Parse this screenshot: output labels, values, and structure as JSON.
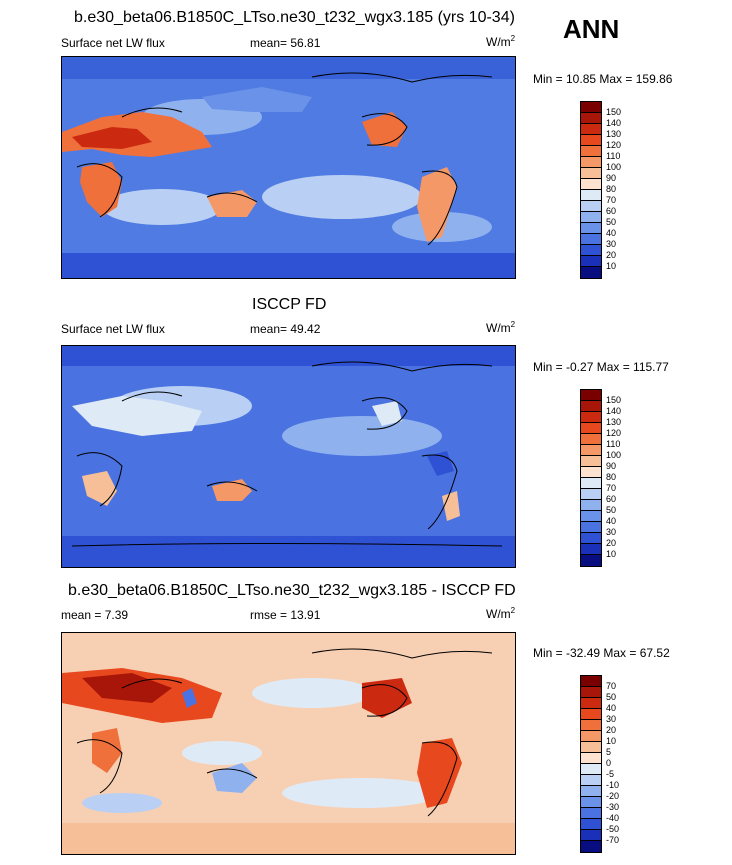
{
  "header": {
    "ann": "ANN"
  },
  "panels": [
    {
      "title": "b.e30_beta06.B1850C_LTso.ne30_t232_wgx3.185 (yrs 10-34)",
      "left_label": "Surface net LW flux",
      "mean_text": "mean=  56.81",
      "units": "W/m",
      "units_sup": "2",
      "minmax": "Min =  10.85 Max = 159.86",
      "levels": [
        "150",
        "140",
        "130",
        "120",
        "110",
        "100",
        "90",
        "80",
        "70",
        "60",
        "50",
        "40",
        "30",
        "20",
        "10"
      ],
      "colors": [
        "#7a0000",
        "#a8160a",
        "#cc2a10",
        "#e8481e",
        "#f0703c",
        "#f49868",
        "#f7bf98",
        "#fde2cf",
        "#dfeaf7",
        "#b9d0f4",
        "#8fb2ef",
        "#6a92e8",
        "#4a72e0",
        "#2f52d4",
        "#1a30b8",
        "#080d80"
      ]
    },
    {
      "title": "ISCCP FD",
      "left_label": "Surface net LW flux",
      "mean_text": "mean=  49.42",
      "units": "W/m",
      "units_sup": "2",
      "minmax": "Min =  -0.27 Max = 115.77",
      "levels": [
        "150",
        "140",
        "130",
        "120",
        "110",
        "100",
        "90",
        "80",
        "70",
        "60",
        "50",
        "40",
        "30",
        "20",
        "10"
      ],
      "colors": [
        "#7a0000",
        "#a8160a",
        "#cc2a10",
        "#e8481e",
        "#f0703c",
        "#f49868",
        "#f7bf98",
        "#fde2cf",
        "#dfeaf7",
        "#b9d0f4",
        "#8fb2ef",
        "#6a92e8",
        "#4a72e0",
        "#2f52d4",
        "#1a30b8",
        "#080d80"
      ]
    },
    {
      "title": "b.e30_beta06.B1850C_LTso.ne30_t232_wgx3.185 - ISCCP FD",
      "left_label": "mean =   7.39",
      "mean_text": "rmse =  13.91",
      "units": "W/m",
      "units_sup": "2",
      "minmax": "Min = -32.49 Max =  67.52",
      "levels": [
        "70",
        "50",
        "40",
        "30",
        "20",
        "10",
        "5",
        "0",
        "-5",
        "-10",
        "-20",
        "-30",
        "-40",
        "-50",
        "-70"
      ],
      "colors": [
        "#7a0000",
        "#a8160a",
        "#cc2a10",
        "#e8481e",
        "#f0703c",
        "#f49868",
        "#f7bf98",
        "#fde2cf",
        "#dfeaf7",
        "#b9d0f4",
        "#8fb2ef",
        "#6a92e8",
        "#4a72e0",
        "#2f52d4",
        "#1a30b8",
        "#080d80"
      ]
    }
  ],
  "chart_data": [
    {
      "type": "heatmap",
      "title": "b.e30_beta06.B1850C_LTso.ne30_t232_wgx3.185 (yrs 10-34)",
      "variable": "Surface net LW flux",
      "units": "W/m2",
      "mean": 56.81,
      "min": 10.85,
      "max": 159.86,
      "contour_levels": [
        10,
        20,
        30,
        40,
        50,
        60,
        70,
        80,
        90,
        100,
        110,
        120,
        130,
        140,
        150
      ]
    },
    {
      "type": "heatmap",
      "title": "ISCCP FD",
      "variable": "Surface net LW flux",
      "units": "W/m2",
      "mean": 49.42,
      "min": -0.27,
      "max": 115.77,
      "contour_levels": [
        10,
        20,
        30,
        40,
        50,
        60,
        70,
        80,
        90,
        100,
        110,
        120,
        130,
        140,
        150
      ]
    },
    {
      "type": "heatmap",
      "title": "b.e30_beta06.B1850C_LTso.ne30_t232_wgx3.185 - ISCCP FD",
      "units": "W/m2",
      "mean": 7.39,
      "rmse": 13.91,
      "min": -32.49,
      "max": 67.52,
      "contour_levels": [
        -70,
        -50,
        -40,
        -30,
        -20,
        -10,
        -5,
        0,
        5,
        10,
        20,
        30,
        40,
        50,
        70
      ]
    }
  ]
}
